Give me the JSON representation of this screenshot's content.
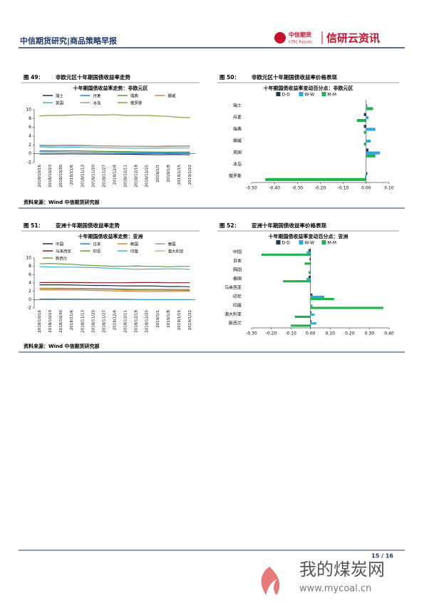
{
  "header": {
    "title": "中信期货研究|商品策略早报",
    "logo_cn": "中信期货",
    "logo_en": "CITIC Futures",
    "brand": "信研云资讯"
  },
  "figures": [
    {
      "label": "图 49：",
      "caption": "非欧元区十年期国债收益率走势"
    },
    {
      "label": "图 50：",
      "caption": "非欧元区十年期国债收益率价格表现"
    },
    {
      "label": "图 51：",
      "caption": "亚洲十年期国债收益率走势"
    },
    {
      "label": "图 52：",
      "caption": "亚洲十年期国债收益率价格表现"
    }
  ],
  "sources": [
    "资料来源：Wind 中信期货研究部",
    "资料来源：Wind 中信期货研究部"
  ],
  "footer": {
    "page": "15 / 16"
  },
  "watermark": {
    "name": "我的煤炭网",
    "url": "www.mycoal.cn"
  },
  "chart_data": [
    {
      "type": "line",
      "title": "十年期国债收益率走势：非欧元区",
      "x": [
        "2018/10/16",
        "2018/10/23",
        "2018/10/30",
        "2018/11/6",
        "2018/11/13",
        "2018/11/20",
        "2018/11/27",
        "2018/12/4",
        "2018/12/11",
        "2018/12/18",
        "2018/12/25",
        "2019/1/1",
        "2019/1/8",
        "2019/1/15",
        "2019/1/22"
      ],
      "ylim": [
        -2,
        10
      ],
      "yticks": [
        -2,
        0,
        2,
        4,
        6,
        8,
        10
      ],
      "series": [
        {
          "name": "瑞士",
          "color": "#1f2a5a",
          "values": [
            -0.05,
            -0.05,
            -0.03,
            -0.02,
            -0.05,
            -0.05,
            -0.08,
            -0.1,
            -0.12,
            -0.15,
            -0.2,
            -0.25,
            -0.2,
            -0.2,
            -0.25
          ]
        },
        {
          "name": "丹麦",
          "color": "#1e88c8",
          "values": [
            0.45,
            0.42,
            0.4,
            0.38,
            0.35,
            0.33,
            0.3,
            0.28,
            0.25,
            0.22,
            0.2,
            0.2,
            0.2,
            0.22,
            0.2
          ]
        },
        {
          "name": "瑞典",
          "color": "#5a9a3a",
          "values": [
            0.7,
            0.68,
            0.68,
            0.7,
            0.65,
            0.6,
            0.55,
            0.52,
            0.5,
            0.45,
            0.42,
            0.4,
            0.38,
            0.4,
            0.4
          ]
        },
        {
          "name": "挪威",
          "color": "#d08a3a",
          "values": [
            1.95,
            1.9,
            1.92,
            1.95,
            1.9,
            1.85,
            1.8,
            1.75,
            1.72,
            1.68,
            1.65,
            1.6,
            1.65,
            1.7,
            1.7
          ]
        },
        {
          "name": "英国",
          "color": "#49b2c0",
          "values": [
            1.55,
            1.5,
            1.45,
            1.5,
            1.45,
            1.4,
            1.35,
            1.3,
            1.3,
            1.25,
            1.28,
            1.25,
            1.3,
            1.3,
            1.3
          ]
        },
        {
          "name": "冰岛",
          "color": "#9a9a9a",
          "values": [
            1.8,
            1.78,
            1.8,
            1.82,
            1.8,
            1.78,
            1.75,
            1.72,
            1.7,
            1.7,
            1.72,
            1.7,
            1.75,
            1.78,
            1.8
          ]
        },
        {
          "name": "俄罗斯",
          "color": "#8aa040",
          "values": [
            8.6,
            8.7,
            8.7,
            8.8,
            8.9,
            8.8,
            8.8,
            8.9,
            8.7,
            8.7,
            8.7,
            8.6,
            8.5,
            8.3,
            8.2
          ]
        }
      ]
    },
    {
      "type": "hbar",
      "title": "十年期国债收益率变动百分点：非欧元区",
      "categories": [
        "瑞士",
        "丹麦",
        "瑞典",
        "挪威",
        "英国",
        "冰岛",
        "俄罗斯"
      ],
      "xlim": [
        -0.5,
        0.1
      ],
      "xticks": [
        {
          "value": -0.5,
          "label": "-0.50"
        },
        {
          "value": -0.4,
          "label": "-0.40"
        },
        {
          "value": -0.3,
          "label": "-0.30"
        },
        {
          "value": -0.2,
          "label": "-0.20"
        },
        {
          "value": -0.1,
          "label": "-0.10"
        },
        {
          "value": 0,
          "label": "0.00"
        },
        {
          "value": 0.1,
          "label": "0.10"
        }
      ],
      "series": [
        {
          "name": "D-D",
          "color": "#1f3864",
          "values": [
            0.0,
            -0.01,
            -0.01,
            0.0,
            0.01,
            0,
            0.005
          ]
        },
        {
          "name": "W-W",
          "color": "#29a8e0",
          "values": [
            0.005,
            0.01,
            0.04,
            0.02,
            0.06,
            0,
            -0.005
          ]
        },
        {
          "name": "M-M",
          "color": "#22b14c",
          "values": [
            0.03,
            -0.04,
            -0.01,
            -0.01,
            0.04,
            0,
            -0.44
          ]
        }
      ]
    },
    {
      "type": "line",
      "title": "十年期国债收益率走势：亚洲",
      "x": [
        "2018/10/16",
        "2018/10/23",
        "2018/10/30",
        "2018/11/6",
        "2018/11/13",
        "2018/11/20",
        "2018/11/27",
        "2018/12/4",
        "2018/12/11",
        "2018/12/18",
        "2018/12/25",
        "2019/1/1",
        "2019/1/8",
        "2019/1/15",
        "2019/1/22"
      ],
      "ylim": [
        -2,
        10
      ],
      "yticks": [
        -2,
        0,
        2,
        4,
        6,
        8,
        10
      ],
      "series": [
        {
          "name": "中国",
          "color": "#1f2a5a",
          "values": [
            3.55,
            3.55,
            3.55,
            3.5,
            3.45,
            3.4,
            3.4,
            3.35,
            3.3,
            3.3,
            3.3,
            3.25,
            3.15,
            3.15,
            3.1
          ]
        },
        {
          "name": "日本",
          "color": "#1e88c8",
          "values": [
            0.14,
            0.14,
            0.12,
            0.12,
            0.11,
            0.1,
            0.1,
            0.08,
            0.05,
            0.03,
            0,
            0,
            0.01,
            0.01,
            0
          ]
        },
        {
          "name": "韩国",
          "color": "#e0823a",
          "values": [
            2.35,
            2.35,
            2.3,
            2.3,
            2.25,
            2.2,
            2.15,
            2.1,
            2.05,
            2.0,
            1.95,
            1.95,
            1.95,
            2.0,
            2.0
          ]
        },
        {
          "name": "泰国",
          "color": "#999999",
          "values": [
            2.75,
            2.75,
            2.75,
            2.7,
            2.7,
            2.65,
            2.65,
            2.6,
            2.55,
            2.5,
            2.5,
            2.45,
            2.45,
            2.45,
            2.45
          ]
        },
        {
          "name": "马来西亚",
          "color": "#8b1a1a",
          "values": [
            4.1,
            4.1,
            4.1,
            4.1,
            4.1,
            4.05,
            4.05,
            4.05,
            4.05,
            4.1,
            4.1,
            4.1,
            4.05,
            4.05,
            4.05
          ]
        },
        {
          "name": "印尼",
          "color": "#5fa030",
          "values": [
            8.6,
            8.7,
            8.6,
            8.5,
            8.3,
            8.2,
            8.1,
            8.0,
            8.0,
            8.1,
            8.0,
            8.0,
            7.9,
            8.0,
            8.0
          ]
        },
        {
          "name": "印度",
          "color": "#49b2c0",
          "values": [
            7.9,
            7.85,
            7.8,
            7.8,
            7.75,
            7.7,
            7.6,
            7.55,
            7.4,
            7.3,
            7.35,
            7.35,
            7.4,
            7.4,
            7.3
          ]
        },
        {
          "name": "澳大利亚",
          "color": "#c8b47a",
          "values": [
            2.65,
            2.65,
            2.6,
            2.65,
            2.6,
            2.55,
            2.5,
            2.45,
            2.35,
            2.3,
            2.3,
            2.3,
            2.25,
            2.3,
            2.3
          ]
        },
        {
          "name": "新西兰",
          "color": "#7a8a3a",
          "values": [
            2.65,
            2.65,
            2.6,
            2.6,
            2.55,
            2.55,
            2.5,
            2.45,
            2.35,
            2.3,
            2.3,
            2.3,
            2.25,
            2.25,
            2.2
          ]
        }
      ]
    },
    {
      "type": "hbar",
      "title": "十年期国债收益率变动百分点：亚洲",
      "categories": [
        "中国",
        "日本",
        "韩国",
        "泰国",
        "马来西亚",
        "印尼",
        "印度",
        "澳大利亚",
        "新西兰"
      ],
      "xlim": [
        -0.3,
        0.4
      ],
      "xticks": [
        {
          "value": -0.3,
          "label": "-0.30"
        },
        {
          "value": -0.2,
          "label": "-0.20"
        },
        {
          "value": -0.1,
          "label": "-0.10"
        },
        {
          "value": 0,
          "label": "0.00"
        },
        {
          "value": 0.1,
          "label": "0.10"
        },
        {
          "value": 0.2,
          "label": "0.20"
        },
        {
          "value": 0.3,
          "label": "0.30"
        },
        {
          "value": 0.4,
          "label": "0.40"
        }
      ],
      "series": [
        {
          "name": "D-D",
          "color": "#1f3864",
          "values": [
            -0.01,
            -0.005,
            0,
            -0.01,
            0,
            0.01,
            0,
            0.005,
            0.005
          ]
        },
        {
          "name": "W-W",
          "color": "#29a8e0",
          "values": [
            -0.02,
            0,
            0,
            -0.02,
            0,
            0.07,
            0.01,
            0.02,
            0.03
          ]
        },
        {
          "name": "M-M",
          "color": "#22b14c",
          "values": [
            -0.25,
            -0.03,
            -0.01,
            -0.14,
            0,
            0.12,
            0.37,
            -0.08,
            -0.1
          ]
        }
      ]
    }
  ]
}
